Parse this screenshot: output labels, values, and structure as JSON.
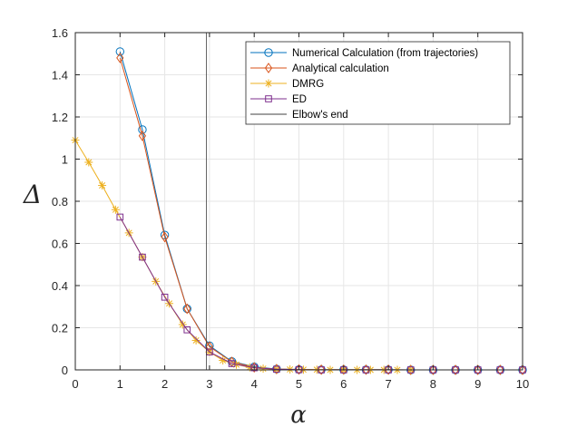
{
  "chart_data": {
    "type": "line",
    "xlabel": "α",
    "ylabel": "Δ",
    "xlim": [
      0,
      10
    ],
    "ylim": [
      0,
      1.6
    ],
    "xticks": [
      0,
      1,
      2,
      3,
      4,
      5,
      6,
      7,
      8,
      9,
      10
    ],
    "yticks": [
      0,
      0.2,
      0.4,
      0.6,
      0.8,
      1,
      1.2,
      1.4,
      1.6
    ],
    "xtick_labels": [
      "0",
      "1",
      "2",
      "3",
      "4",
      "5",
      "6",
      "7",
      "8",
      "9",
      "10"
    ],
    "ytick_labels": [
      "0",
      "0.2",
      "0.4",
      "0.6",
      "0.8",
      "1",
      "1.2",
      "1.4",
      "1.6"
    ],
    "grid": true,
    "legend_position": "top-right",
    "series": [
      {
        "name": "Numerical Calculation (from trajectories)",
        "color": "#0072BD",
        "marker": "circle",
        "x": [
          1,
          1.5,
          2,
          2.5,
          3,
          3.5,
          4,
          4.5,
          5,
          5.5,
          6,
          6.5,
          7,
          7.5,
          8,
          8.5,
          9,
          9.5,
          10
        ],
        "y": [
          1.51,
          1.14,
          0.64,
          0.29,
          0.115,
          0.04,
          0.015,
          0.004,
          0.002,
          0.001,
          0.001,
          0.001,
          0.001,
          0,
          0,
          0,
          0,
          0,
          0
        ]
      },
      {
        "name": "Analytical calculation",
        "color": "#D95319",
        "marker": "diamond",
        "x": [
          1,
          1.5,
          2,
          2.5,
          3,
          3.5,
          4,
          4.5,
          5,
          5.5,
          6,
          6.5,
          7,
          7.5,
          8,
          8.5,
          9,
          9.5,
          10
        ],
        "y": [
          1.48,
          1.11,
          0.63,
          0.29,
          0.11,
          0.038,
          0.012,
          0.004,
          0.002,
          0.001,
          0.001,
          0.001,
          0.001,
          0,
          0,
          0,
          0,
          0,
          0
        ]
      },
      {
        "name": "DMRG",
        "color": "#EDB120",
        "marker": "asterisk",
        "x": [
          0,
          0.3,
          0.6,
          0.9,
          1.2,
          1.5,
          1.8,
          2.1,
          2.4,
          2.7,
          3.0,
          3.3,
          3.6,
          3.9,
          4.2,
          4.5,
          4.8,
          5.1,
          5.4,
          5.7,
          6.0,
          6.3,
          6.6,
          6.9,
          7.2,
          7.5
        ],
        "y": [
          1.09,
          0.985,
          0.875,
          0.76,
          0.65,
          0.535,
          0.42,
          0.315,
          0.215,
          0.14,
          0.085,
          0.045,
          0.025,
          0.012,
          0.006,
          0.003,
          0.002,
          0.001,
          0.001,
          0,
          0,
          0,
          0,
          0,
          0,
          0
        ]
      },
      {
        "name": "ED",
        "color": "#7E2F8E",
        "marker": "square",
        "x": [
          1,
          1.5,
          2,
          2.5,
          3,
          3.5,
          4,
          4.5,
          5,
          5.5,
          6,
          6.5,
          7,
          7.5,
          8,
          8.5,
          9,
          9.5,
          10
        ],
        "y": [
          0.725,
          0.535,
          0.345,
          0.19,
          0.085,
          0.03,
          0.01,
          0.003,
          0.001,
          0,
          0,
          0,
          0,
          0,
          0,
          0,
          0,
          0,
          0
        ]
      },
      {
        "name": "Elbow's end",
        "color": "#404040",
        "marker": "none",
        "vertical_line_x": 2.93
      }
    ]
  }
}
